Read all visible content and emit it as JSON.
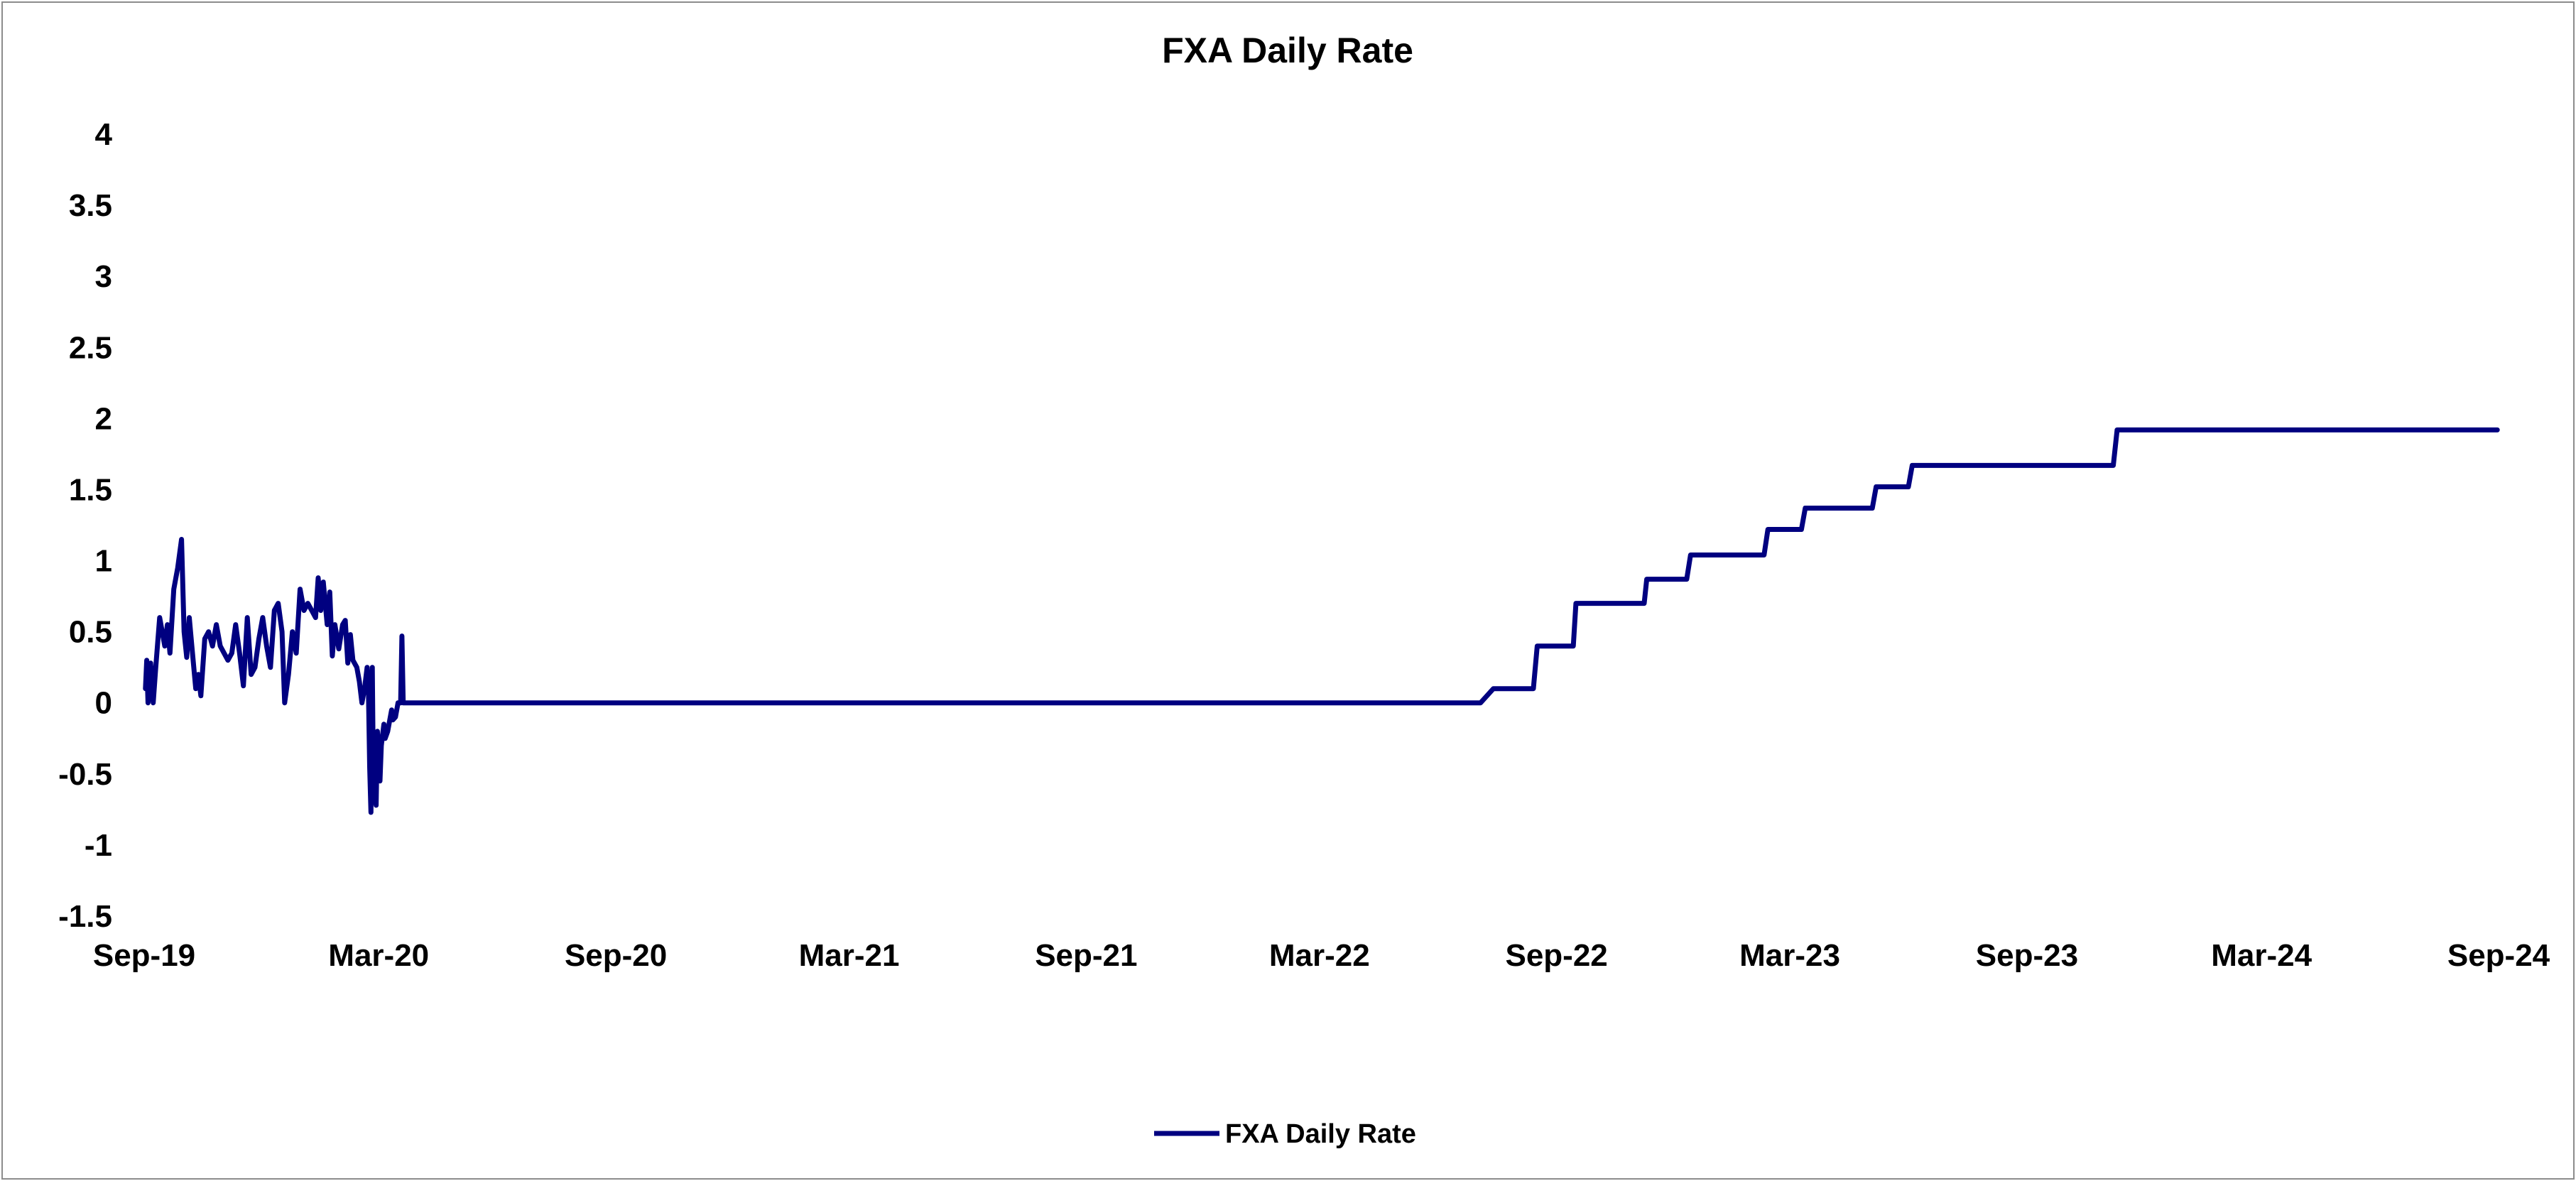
{
  "chart_data": {
    "type": "line",
    "title": "FXA Daily Rate",
    "xlabel": "",
    "ylabel": "",
    "xlim": [
      "2019-09-01",
      "2024-09-01"
    ],
    "ylim": [
      -1.5,
      4
    ],
    "x_ticks": [
      "Sep-19",
      "Mar-20",
      "Sep-20",
      "Mar-21",
      "Sep-21",
      "Mar-22",
      "Sep-22",
      "Mar-23",
      "Sep-23",
      "Mar-24",
      "Sep-24"
    ],
    "y_ticks": [
      "4",
      "3.5",
      "3",
      "2.5",
      "2",
      "1.5",
      "1",
      "0.5",
      "0",
      "-0.5",
      "-1",
      "-1.5"
    ],
    "grid": false,
    "legend_position": "bottom",
    "colors": {
      "series": "#000080"
    },
    "series": [
      {
        "name": "FXA Daily Rate",
        "points": [
          [
            "2019-09-02",
            0.1
          ],
          [
            "2019-09-03",
            0.3
          ],
          [
            "2019-09-04",
            0.0
          ],
          [
            "2019-09-06",
            0.28
          ],
          [
            "2019-09-08",
            0.0
          ],
          [
            "2019-09-10",
            0.25
          ],
          [
            "2019-09-13",
            0.6
          ],
          [
            "2019-09-17",
            0.4
          ],
          [
            "2019-09-19",
            0.55
          ],
          [
            "2019-09-21",
            0.35
          ],
          [
            "2019-09-24",
            0.8
          ],
          [
            "2019-09-27",
            0.95
          ],
          [
            "2019-09-30",
            1.15
          ],
          [
            "2019-10-02",
            0.5
          ],
          [
            "2019-10-04",
            0.32
          ],
          [
            "2019-10-06",
            0.6
          ],
          [
            "2019-10-08",
            0.4
          ],
          [
            "2019-10-11",
            0.1
          ],
          [
            "2019-10-13",
            0.2
          ],
          [
            "2019-10-15",
            0.05
          ],
          [
            "2019-10-18",
            0.45
          ],
          [
            "2019-10-21",
            0.5
          ],
          [
            "2019-10-24",
            0.4
          ],
          [
            "2019-10-27",
            0.55
          ],
          [
            "2019-10-30",
            0.4
          ],
          [
            "2019-11-02",
            0.35
          ],
          [
            "2019-11-05",
            0.3
          ],
          [
            "2019-11-08",
            0.35
          ],
          [
            "2019-11-11",
            0.55
          ],
          [
            "2019-11-14",
            0.35
          ],
          [
            "2019-11-17",
            0.12
          ],
          [
            "2019-11-20",
            0.6
          ],
          [
            "2019-11-23",
            0.2
          ],
          [
            "2019-11-26",
            0.25
          ],
          [
            "2019-11-29",
            0.45
          ],
          [
            "2019-12-02",
            0.6
          ],
          [
            "2019-12-05",
            0.4
          ],
          [
            "2019-12-08",
            0.25
          ],
          [
            "2019-12-11",
            0.65
          ],
          [
            "2019-12-14",
            0.7
          ],
          [
            "2019-12-17",
            0.5
          ],
          [
            "2019-12-19",
            0.0
          ],
          [
            "2019-12-22",
            0.2
          ],
          [
            "2019-12-25",
            0.5
          ],
          [
            "2019-12-28",
            0.35
          ],
          [
            "2019-12-31",
            0.8
          ],
          [
            "2020-01-03",
            0.65
          ],
          [
            "2020-01-06",
            0.7
          ],
          [
            "2020-01-09",
            0.65
          ],
          [
            "2020-01-12",
            0.6
          ],
          [
            "2020-01-14",
            0.88
          ],
          [
            "2020-01-16",
            0.65
          ],
          [
            "2020-01-18",
            0.85
          ],
          [
            "2020-01-21",
            0.55
          ],
          [
            "2020-01-23",
            0.78
          ],
          [
            "2020-01-25",
            0.33
          ],
          [
            "2020-01-27",
            0.55
          ],
          [
            "2020-01-30",
            0.38
          ],
          [
            "2020-02-02",
            0.55
          ],
          [
            "2020-02-04",
            0.58
          ],
          [
            "2020-02-06",
            0.28
          ],
          [
            "2020-02-08",
            0.48
          ],
          [
            "2020-02-10",
            0.3
          ],
          [
            "2020-02-13",
            0.25
          ],
          [
            "2020-02-15",
            0.15
          ],
          [
            "2020-02-17",
            0.0
          ],
          [
            "2020-02-19",
            0.1
          ],
          [
            "2020-02-21",
            0.25
          ],
          [
            "2020-02-22",
            0.1
          ],
          [
            "2020-02-23",
            -0.45
          ],
          [
            "2020-02-24",
            -0.77
          ],
          [
            "2020-02-25",
            0.25
          ],
          [
            "2020-02-26",
            -0.7
          ],
          [
            "2020-02-27",
            -0.45
          ],
          [
            "2020-02-28",
            -0.72
          ],
          [
            "2020-02-29",
            -0.2
          ],
          [
            "2020-03-01",
            -0.35
          ],
          [
            "2020-03-02",
            -0.55
          ],
          [
            "2020-03-03",
            -0.3
          ],
          [
            "2020-03-05",
            -0.15
          ],
          [
            "2020-03-06",
            -0.25
          ],
          [
            "2020-03-08",
            -0.2
          ],
          [
            "2020-03-09",
            -0.15
          ],
          [
            "2020-03-11",
            -0.05
          ],
          [
            "2020-03-12",
            -0.12
          ],
          [
            "2020-03-14",
            -0.1
          ],
          [
            "2020-03-16",
            0.0
          ],
          [
            "2020-03-18",
            0.0
          ],
          [
            "2020-03-19",
            0.47
          ],
          [
            "2020-03-20",
            0.0
          ],
          [
            "2020-03-22",
            0.0
          ],
          [
            "2022-07-04",
            0.0
          ],
          [
            "2022-07-14",
            0.1
          ],
          [
            "2022-08-14",
            0.1
          ],
          [
            "2022-08-17",
            0.4
          ],
          [
            "2022-09-14",
            0.4
          ],
          [
            "2022-09-16",
            0.7
          ],
          [
            "2022-11-08",
            0.7
          ],
          [
            "2022-11-10",
            0.87
          ],
          [
            "2022-12-11",
            0.87
          ],
          [
            "2022-12-14",
            1.04
          ],
          [
            "2023-02-09",
            1.04
          ],
          [
            "2023-02-12",
            1.22
          ],
          [
            "2023-03-10",
            1.22
          ],
          [
            "2023-03-13",
            1.37
          ],
          [
            "2023-05-04",
            1.37
          ],
          [
            "2023-05-07",
            1.52
          ],
          [
            "2023-06-01",
            1.52
          ],
          [
            "2023-06-04",
            1.67
          ],
          [
            "2023-11-07",
            1.67
          ],
          [
            "2023-11-10",
            1.92
          ],
          [
            "2024-08-31",
            1.92
          ]
        ]
      }
    ]
  }
}
